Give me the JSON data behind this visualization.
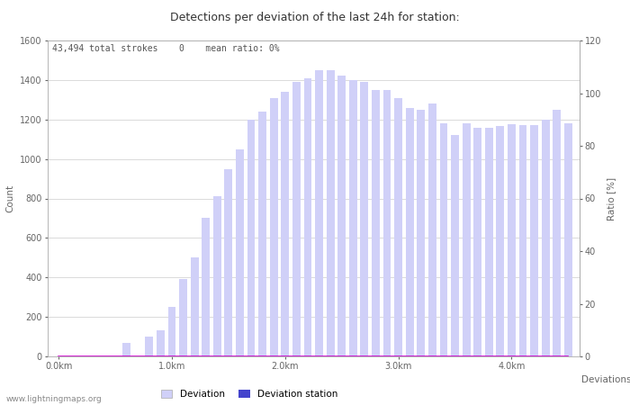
{
  "title": "Detections per deviation of the last 24h for station:",
  "subtitle": "43,494 total strokes    0    mean ratio: 0%",
  "xlabel": "Deviations",
  "ylabel_left": "Count",
  "ylabel_right": "Ratio [%]",
  "ylim_left": [
    0,
    1600
  ],
  "ylim_right": [
    0,
    120
  ],
  "xtick_labels": [
    "0.0km",
    "1.0km",
    "2.0km",
    "3.0km",
    "4.0km"
  ],
  "ytick_left": [
    0,
    200,
    400,
    600,
    800,
    1000,
    1200,
    1400,
    1600
  ],
  "ytick_right": [
    0,
    20,
    40,
    60,
    80,
    100,
    120
  ],
  "bar_color_light": "#d0d0f8",
  "bar_color_dark": "#4444cc",
  "line_color": "#cc00cc",
  "background_color": "#ffffff",
  "grid_color": "#cccccc",
  "watermark": "www.lightningmaps.org",
  "deviation_values": [
    0,
    0,
    0,
    0,
    0,
    0,
    70,
    0,
    100,
    130,
    250,
    390,
    500,
    700,
    810,
    950,
    1050,
    1200,
    1240,
    1310,
    1340,
    1390,
    1410,
    1450,
    1450,
    1420,
    1400,
    1390,
    1350,
    1350,
    1310,
    1260,
    1250,
    1280,
    1180,
    1120,
    1180,
    1160,
    1160,
    1165,
    1175,
    1170,
    1170,
    1200,
    1250,
    1180
  ],
  "station_values": [
    0,
    0,
    0,
    0,
    0,
    0,
    0,
    0,
    0,
    0,
    0,
    0,
    0,
    0,
    0,
    0,
    0,
    0,
    0,
    0,
    0,
    0,
    0,
    0,
    0,
    0,
    0,
    0,
    0,
    0,
    0,
    0,
    0,
    0,
    0,
    0,
    0,
    0,
    0,
    0,
    0,
    0,
    0,
    0,
    0,
    0
  ],
  "ratio_values": [
    0,
    0,
    0,
    0,
    0,
    0,
    0,
    0,
    0,
    0,
    0,
    0,
    0,
    0,
    0,
    0,
    0,
    0,
    0,
    0,
    0,
    0,
    0,
    0,
    0,
    0,
    0,
    0,
    0,
    0,
    0,
    0,
    0,
    0,
    0,
    0,
    0,
    0,
    0,
    0,
    0,
    0,
    0,
    0,
    0,
    0
  ],
  "title_fontsize": 9,
  "subtitle_fontsize": 7,
  "axis_fontsize": 7.5,
  "tick_fontsize": 7,
  "legend_fontsize": 7.5,
  "watermark_fontsize": 6.5,
  "n_bars": 46,
  "bars_per_km": 10,
  "total_km": 4.5
}
